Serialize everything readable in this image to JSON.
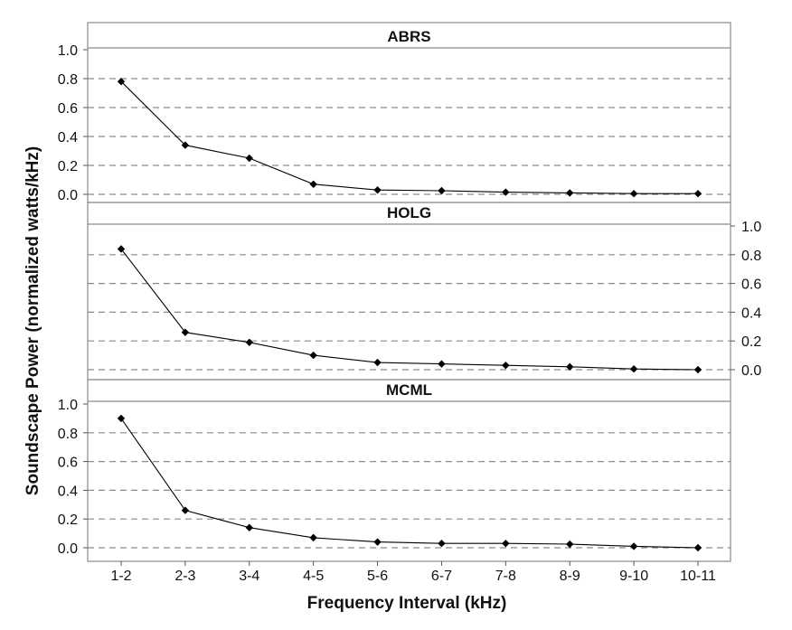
{
  "chart_data": {
    "type": "line",
    "layout": "three vertically stacked panels sharing x axis; middle panel y axis on right",
    "xlabel": "Frequency Interval (kHz)",
    "ylabel": "Soundscape Power (normalized watts/kHz)",
    "categories": [
      "1-2",
      "2-3",
      "3-4",
      "4-5",
      "5-6",
      "6-7",
      "7-8",
      "8-9",
      "9-10",
      "10-11"
    ],
    "yticks": [
      "0.0",
      "0.2",
      "0.4",
      "0.6",
      "0.8",
      "1.0"
    ],
    "ylim": [
      0,
      1
    ],
    "grid": "horizontal dashed",
    "line_color": "#000000",
    "marker": "diamond",
    "panels": [
      {
        "title": "ABRS",
        "values": [
          0.78,
          0.34,
          0.25,
          0.07,
          0.03,
          0.025,
          0.015,
          0.01,
          0.005,
          0.005
        ]
      },
      {
        "title": "HOLG",
        "values": [
          0.84,
          0.26,
          0.19,
          0.1,
          0.05,
          0.04,
          0.03,
          0.02,
          0.005,
          0.0
        ]
      },
      {
        "title": "MCML",
        "values": [
          0.9,
          0.26,
          0.14,
          0.07,
          0.04,
          0.03,
          0.03,
          0.025,
          0.01,
          0.0
        ]
      }
    ]
  }
}
